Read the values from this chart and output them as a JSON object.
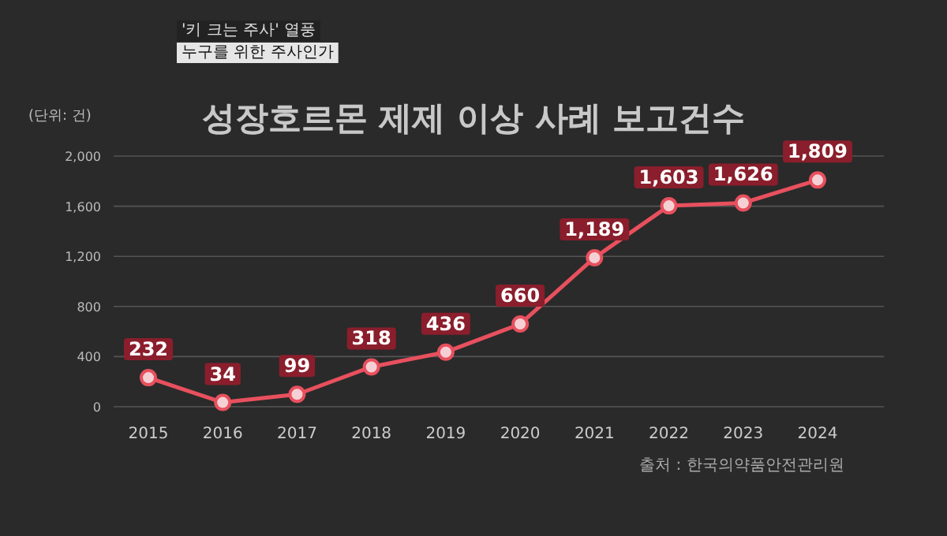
{
  "chart_data": {
    "type": "line",
    "title": "성장호르몬 제제 이상 사례 보고건수",
    "ylabel": "(단위: 건)",
    "annotations": [
      "'키 크는 주사' 열풍",
      "누구를 위한 주사인가",
      "출처 : 한국의약품안전관리원"
    ],
    "categories": [
      "2015",
      "2016",
      "2017",
      "2018",
      "2019",
      "2020",
      "2021",
      "2022",
      "2023",
      "2024"
    ],
    "series": [
      {
        "color": "#e8505e",
        "values": [
          232,
          34,
          99,
          318,
          436,
          660,
          1189,
          1603,
          1626,
          1809
        ],
        "value_labels": [
          "232",
          "34",
          "99",
          "318",
          "436",
          "660",
          "1,189",
          "1,603",
          "1,626",
          "1,809"
        ]
      }
    ],
    "ylim": [
      0,
      2000
    ],
    "yticks": [
      0,
      {
        "value": 400,
        "label": "400"
      },
      {
        "value": 800,
        "label": "800"
      },
      {
        "value": 1200,
        "label": "1,200"
      },
      {
        "value": 1600,
        "label": "1,600"
      },
      {
        "value": 2000,
        "label": "2,000"
      }
    ],
    "grid": "y",
    "marker": "circle"
  }
}
